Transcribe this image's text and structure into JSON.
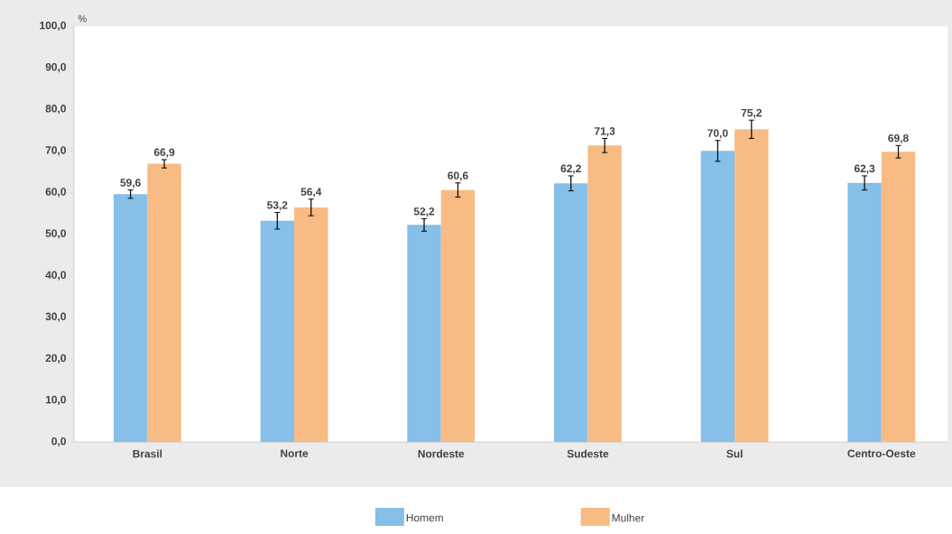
{
  "chart_data": {
    "type": "bar",
    "ylabel": "%",
    "categories": [
      "**Brasil**",
      "Norte",
      "Nordeste",
      "Sudeste",
      "Sul",
      "Centro-Oeste"
    ],
    "series": [
      {
        "name": "Homem",
        "color": "#86bfe8",
        "values": [
          59.6,
          53.2,
          52.2,
          62.2,
          70.0,
          62.3
        ],
        "errors": [
          1.0,
          2.0,
          1.5,
          1.8,
          2.5,
          1.7
        ],
        "value_labels": [
          "59,6",
          "53,2",
          "52,2",
          "62,2",
          "70,0",
          "62,3"
        ]
      },
      {
        "name": "Mulher",
        "color": "#f8bb84",
        "values": [
          66.9,
          56.4,
          60.6,
          71.3,
          75.2,
          69.8
        ],
        "errors": [
          1.0,
          2.0,
          1.7,
          1.7,
          2.2,
          1.5
        ],
        "value_labels": [
          "66,9",
          "56,4",
          "60,6",
          "71,3",
          "75,2",
          "69,8"
        ]
      }
    ],
    "ylim": [
      0,
      100
    ],
    "yticks": [
      {
        "value": 0,
        "label": "0,0"
      },
      {
        "value": 10,
        "label": "10,0"
      },
      {
        "value": 20,
        "label": "20,0"
      },
      {
        "value": 30,
        "label": "30,0"
      },
      {
        "value": 40,
        "label": "40,0"
      },
      {
        "value": 50,
        "label": "50,0"
      },
      {
        "value": 60,
        "label": "60,0"
      },
      {
        "value": 70,
        "label": "70,0"
      },
      {
        "value": 80,
        "label": "80,0"
      },
      {
        "value": 90,
        "label": "90,0"
      },
      {
        "value": 100,
        "label": "100,0"
      }
    ],
    "grid": false,
    "legend": "bottom"
  }
}
